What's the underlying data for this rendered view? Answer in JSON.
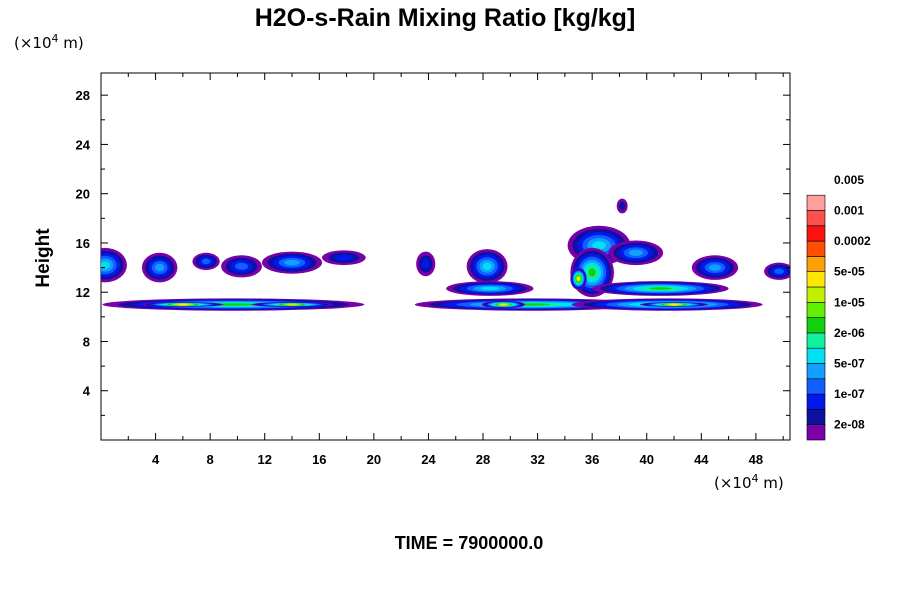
{
  "chart_data": {
    "type": "heatmap",
    "title": "H2O-s-Rain Mixing Ratio [kg/kg]",
    "ylabel": "Height",
    "x_unit": "(×10",
    "x_unit_exp": "4",
    "x_unit_suffix": " m)",
    "y_unit": "(×10",
    "y_unit_exp": "4",
    "y_unit_suffix": " m)",
    "time_label": "TIME = 7900000.0",
    "xlim": [
      0,
      50.5
    ],
    "ylim": [
      0,
      29.8
    ],
    "x_ticks": [
      "4",
      "8",
      "12",
      "16",
      "20",
      "24",
      "28",
      "32",
      "36",
      "40",
      "44",
      "48"
    ],
    "y_ticks": [
      "4",
      "8",
      "12",
      "16",
      "20",
      "24",
      "28"
    ],
    "colorbar": {
      "colors": [
        "#7a00a8",
        "#1010a0",
        "#0018f0",
        "#1060ff",
        "#10a0ff",
        "#00e0f0",
        "#10f0a0",
        "#10d010",
        "#60f000",
        "#c0f000",
        "#ffe800",
        "#ffa000",
        "#ff5000",
        "#ff1010",
        "#ff5050",
        "#ffa0a0"
      ],
      "labels": [
        "2e-08",
        "1e-07",
        "5e-07",
        "2e-06",
        "1e-05",
        "5e-05",
        "0.0002",
        "0.001",
        "0.005"
      ]
    },
    "cells": [
      {
        "x": 0.3,
        "y": 14.2,
        "rx": 1.6,
        "ry": 1.4,
        "level": 5
      },
      {
        "x": 4.3,
        "y": 14.0,
        "rx": 1.3,
        "ry": 1.2,
        "level": 4
      },
      {
        "x": 7.7,
        "y": 14.5,
        "rx": 1.0,
        "ry": 0.7,
        "level": 3
      },
      {
        "x": 10.3,
        "y": 14.1,
        "rx": 1.5,
        "ry": 0.9,
        "level": 3
      },
      {
        "x": 14.0,
        "y": 14.4,
        "rx": 2.2,
        "ry": 0.9,
        "level": 4
      },
      {
        "x": 17.8,
        "y": 14.8,
        "rx": 1.6,
        "ry": 0.6,
        "level": 2
      },
      {
        "x": 23.8,
        "y": 14.3,
        "rx": 0.7,
        "ry": 1.0,
        "level": 2
      },
      {
        "x": 28.3,
        "y": 14.1,
        "rx": 1.5,
        "ry": 1.4,
        "level": 5
      },
      {
        "x": 36.5,
        "y": 15.8,
        "rx": 2.3,
        "ry": 1.6,
        "level": 5
      },
      {
        "x": 39.2,
        "y": 15.2,
        "rx": 2.0,
        "ry": 1.0,
        "level": 4
      },
      {
        "x": 38.2,
        "y": 19.0,
        "rx": 0.4,
        "ry": 0.6,
        "level": 1
      },
      {
        "x": 45.0,
        "y": 14.0,
        "rx": 1.7,
        "ry": 1.0,
        "level": 4
      },
      {
        "x": 49.7,
        "y": 13.7,
        "rx": 1.1,
        "ry": 0.7,
        "level": 3
      },
      {
        "x": 36.0,
        "y": 13.6,
        "rx": 1.6,
        "ry": 2.0,
        "level": 7
      },
      {
        "x": 35.0,
        "y": 13.1,
        "rx": 0.6,
        "ry": 0.9,
        "level": 10
      },
      {
        "x": 28.5,
        "y": 12.3,
        "rx": 3.2,
        "ry": 0.6,
        "level": 5
      },
      {
        "x": 41.0,
        "y": 12.3,
        "rx": 5.0,
        "ry": 0.6,
        "level": 7
      },
      {
        "x": 9.7,
        "y": 11.0,
        "rx": 9.6,
        "ry": 0.5,
        "level": 7
      },
      {
        "x": 6.0,
        "y": 11.0,
        "rx": 3.0,
        "ry": 0.2,
        "level": 10
      },
      {
        "x": 14.0,
        "y": 11.0,
        "rx": 3.0,
        "ry": 0.2,
        "level": 9
      },
      {
        "x": 31.5,
        "y": 11.0,
        "rx": 8.5,
        "ry": 0.5,
        "level": 7
      },
      {
        "x": 29.5,
        "y": 11.0,
        "rx": 1.6,
        "ry": 0.3,
        "level": 10
      },
      {
        "x": 41.5,
        "y": 11.0,
        "rx": 7.0,
        "ry": 0.5,
        "level": 7
      },
      {
        "x": 42.0,
        "y": 11.0,
        "rx": 2.5,
        "ry": 0.2,
        "level": 10
      }
    ]
  }
}
